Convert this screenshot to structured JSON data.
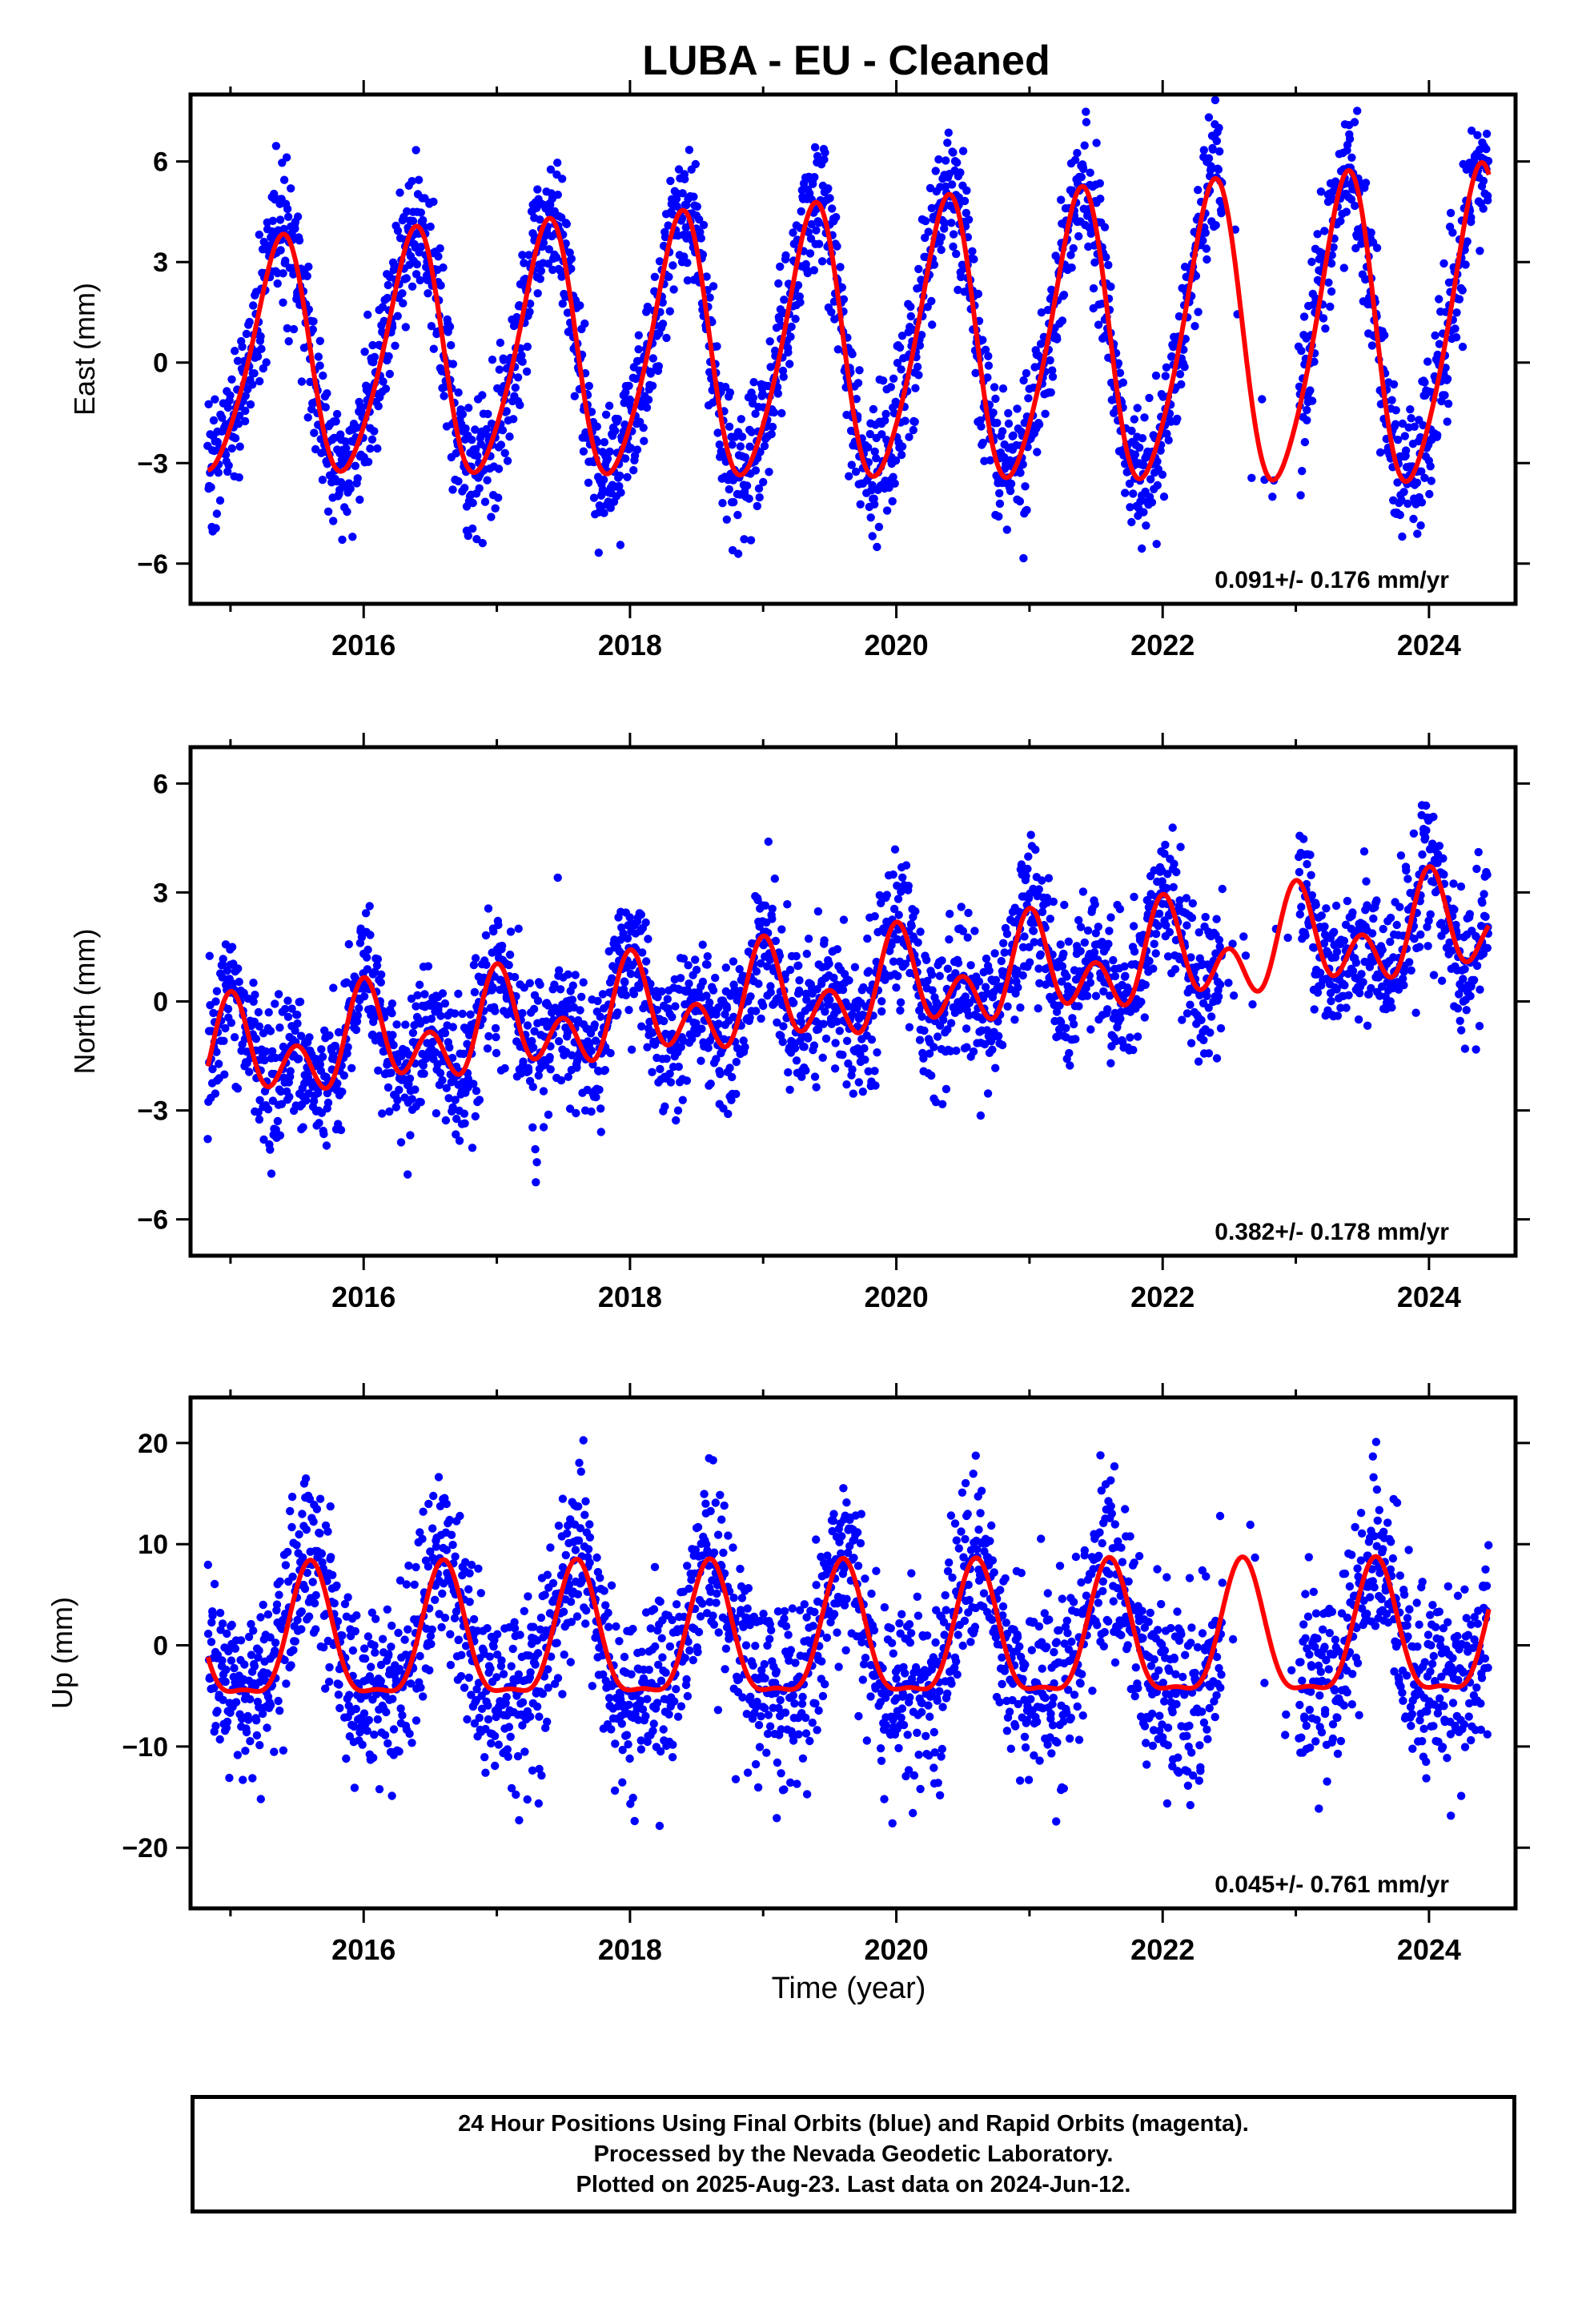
{
  "page_title": "LUBA  - EU - Cleaned",
  "x_axis_label": "Time (year)",
  "footer": {
    "lines": [
      "24 Hour Positions Using Final Orbits (blue) and Rapid Orbits (magenta).",
      "Processed by the Nevada Geodetic Laboratory.",
      "Plotted on 2025-Aug-23. Last data on 2024-Jun-12."
    ]
  },
  "colors": {
    "points": "#0000ff",
    "model": "#ff0000",
    "axes": "#000000"
  },
  "chart_data": [
    {
      "type": "scatter",
      "component": "East",
      "ylabel": "East (mm)",
      "xlim": [
        2014.7,
        2024.65
      ],
      "ylim": [
        -7.2,
        8.0
      ],
      "yticks": [
        6,
        3,
        0,
        -3,
        -6
      ],
      "xticks": [
        2016,
        2018,
        2020,
        2022,
        2024
      ],
      "rate_label": "0.091+/- 0.176 mm/yr",
      "model": {
        "offset": 0.45,
        "trend": 0.091,
        "t0": 2019.5,
        "annual_amp": 3.35,
        "annual_peak": 2015.37,
        "semiannual_amp": 0.45,
        "semiannual_peak": 2015.45,
        "amp_growth": 0.04
      },
      "scatter": {
        "noise": 1.05,
        "gap": [
          2022.45,
          2023.02
        ]
      }
    },
    {
      "type": "scatter",
      "component": "North",
      "ylabel": "North (mm)",
      "xlim": [
        2014.7,
        2024.65
      ],
      "ylim": [
        -7.0,
        7.0
      ],
      "yticks": [
        6,
        3,
        0,
        -3,
        -6
      ],
      "xticks": [
        2016,
        2018,
        2020,
        2022,
        2024
      ],
      "rate_label": "0.382+/- 0.178 mm/yr",
      "model": {
        "offset": 0.2,
        "trend": 0.382,
        "t0": 2019.5,
        "annual_amp": 0.85,
        "annual_peak": 2016.02,
        "semiannual_amp": 0.95,
        "semiannual_peak": 2016.0,
        "amp_growth": 0.0
      },
      "scatter": {
        "noise": 1.0,
        "gap": [
          2022.45,
          2023.02
        ]
      }
    },
    {
      "type": "scatter",
      "component": "Up",
      "ylabel": "Up (mm)",
      "xlim": [
        2014.7,
        2024.65
      ],
      "ylim": [
        -26,
        24.5
      ],
      "yticks": [
        20,
        10,
        0,
        -10,
        -20
      ],
      "xticks": [
        2016,
        2018,
        2020,
        2022,
        2024
      ],
      "rate_label": "0.045+/- 0.761 mm/yr",
      "model": {
        "offset": 0.2,
        "trend": 0.045,
        "t0": 2019.5,
        "annual_amp": 6.4,
        "annual_peak": 2015.6,
        "semiannual_amp": 2.0,
        "semiannual_peak": 2015.6,
        "amp_growth": 0.0
      },
      "scatter": {
        "noise": 4.6,
        "gap": [
          2022.45,
          2023.02
        ]
      }
    }
  ]
}
